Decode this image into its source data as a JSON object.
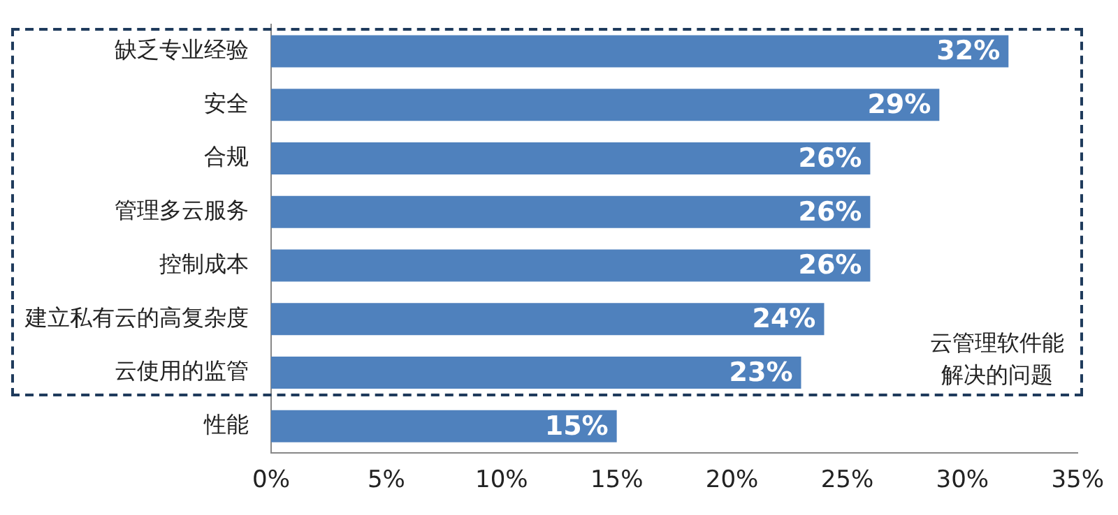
{
  "chart_data": {
    "type": "bar",
    "orientation": "horizontal",
    "categories": [
      "缺乏专业经验",
      "安全",
      "合规",
      "管理多云服务",
      "控制成本",
      "建立私有云的高复杂度",
      "云使用的监管",
      "性能"
    ],
    "values": [
      32,
      29,
      26,
      26,
      26,
      24,
      23,
      15
    ],
    "value_labels": [
      "32%",
      "29%",
      "26%",
      "26%",
      "26%",
      "24%",
      "23%",
      "15%"
    ],
    "color": "#4f81bd",
    "xlim": [
      0,
      35
    ],
    "xticks": [
      {
        "value": 0,
        "label": "0%"
      },
      {
        "value": 5,
        "label": "5%"
      },
      {
        "value": 10,
        "label": "10%"
      },
      {
        "value": 15,
        "label": "15%"
      },
      {
        "value": 20,
        "label": "20%"
      },
      {
        "value": 25,
        "label": "25%"
      },
      {
        "value": 30,
        "label": "30%"
      },
      {
        "value": 35,
        "label": "35%"
      }
    ],
    "annotations": [
      "云管理软件能解决的问题"
    ]
  }
}
